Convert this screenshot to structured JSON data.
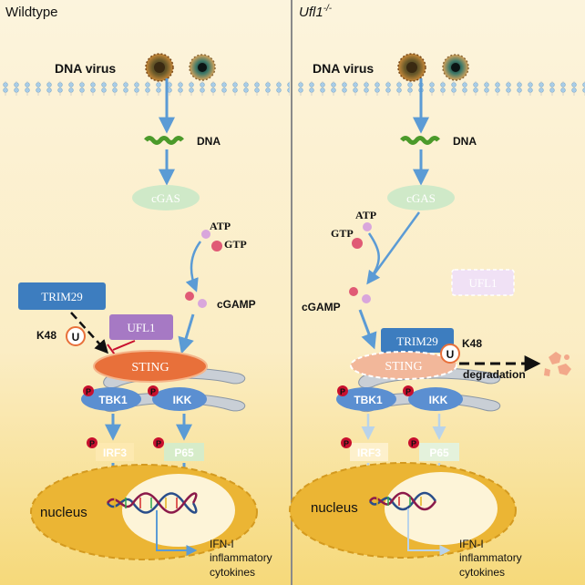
{
  "panels": {
    "left": {
      "title": "Wildtype"
    },
    "right": {
      "title_main": "Ufl1",
      "title_sup": "-/-"
    }
  },
  "labels": {
    "dna_virus": "DNA virus",
    "dna": "DNA",
    "cgas": "cGAS",
    "atp": "ATP",
    "gtp": "GTP",
    "cgamp": "cGAMP",
    "trim29": "TRIM29",
    "ufl1": "UFL1",
    "k48": "K48",
    "ubiquitin": "U",
    "sting": "STING",
    "tbk1": "TBK1",
    "ikk": "IKK",
    "phospho": "P",
    "irf3": "IRF3",
    "p65": "P65",
    "nucleus": "nucleus",
    "output_line1": "IFN-I",
    "output_line2": "inflammatory",
    "output_line3": "cytokines",
    "degradation": "degradation"
  },
  "colors": {
    "background": "#fbf1d6",
    "nucleus_outer": "#ebb534",
    "nucleus_inner": "#fdf4d8",
    "arrow": "#5b9bd5",
    "cgas": "#cfe9c8",
    "sting": "#e8703a",
    "kinase": "#5b8fd1",
    "trim29": "#3d7dbf",
    "ufl1": "#a679c4",
    "phospho": "#c8102e",
    "irf3": "#fde9b0",
    "p65": "#d6ecc9",
    "membrane": "#a8cde8",
    "dna_green": "#4b9a2a"
  }
}
